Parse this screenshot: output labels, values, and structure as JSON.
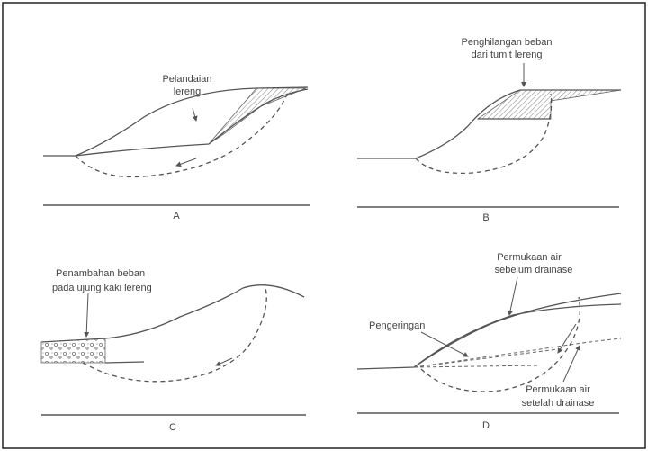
{
  "panels": {
    "a": {
      "letter": "A",
      "label_line1": "Pelandaian",
      "label_line2": "lereng"
    },
    "b": {
      "letter": "B",
      "label_line1": "Penghilangan beban",
      "label_line2": "dari tumit lereng"
    },
    "c": {
      "letter": "C",
      "label_line1": "Penambahan beban",
      "label_line2": "pada ujung kaki lereng"
    },
    "d": {
      "letter": "D",
      "label_top_line1": "Permukaan air",
      "label_top_line2": "sebelum drainase",
      "label_left": "Pengeringan",
      "label_bottom_line1": "Permukaan air",
      "label_bottom_line2": "setelah drainase"
    }
  },
  "colors": {
    "line": "#555555",
    "hatch": "#888888",
    "frame": "#222222"
  }
}
